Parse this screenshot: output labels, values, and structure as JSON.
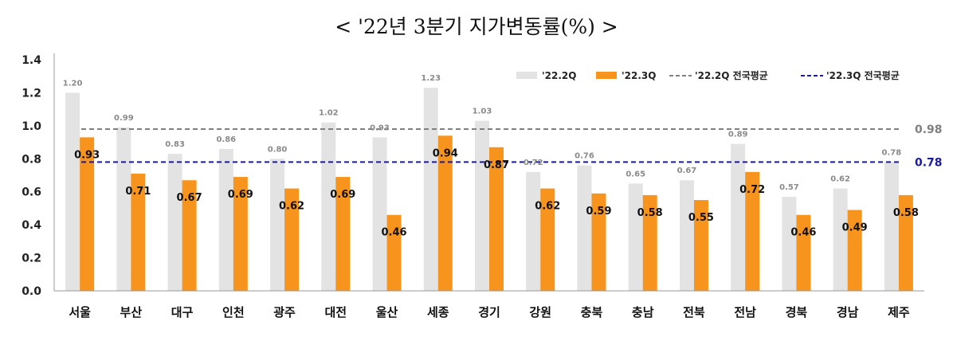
{
  "chart_data": {
    "type": "bar",
    "title": "<  '22년 3분기 지가변동률(%) >",
    "categories": [
      "서울",
      "부산",
      "대구",
      "인천",
      "광주",
      "대전",
      "울산",
      "세종",
      "경기",
      "강원",
      "충북",
      "충남",
      "전북",
      "전남",
      "경북",
      "경남",
      "제주"
    ],
    "series": [
      {
        "name": "'22.2Q",
        "color": "#e3e3e3",
        "values": [
          1.2,
          0.99,
          0.83,
          0.86,
          0.8,
          1.02,
          0.93,
          1.23,
          1.03,
          0.72,
          0.76,
          0.65,
          0.67,
          0.89,
          0.57,
          0.62,
          0.78
        ],
        "labels": [
          "1.20",
          "0.99",
          "0.83",
          "0.86",
          "0.80",
          "1.02",
          "0.93",
          "1.23",
          "1.03",
          "0.72",
          "0.76",
          "0.65",
          "0.67",
          "0.89",
          "0.57",
          "0.62",
          "0.78"
        ]
      },
      {
        "name": "'22.3Q",
        "color": "#f7941d",
        "values": [
          0.93,
          0.71,
          0.67,
          0.69,
          0.62,
          0.69,
          0.46,
          0.94,
          0.87,
          0.62,
          0.59,
          0.58,
          0.55,
          0.72,
          0.46,
          0.49,
          0.58
        ],
        "labels": [
          "0.93",
          "0.71",
          "0.67",
          "0.69",
          "0.62",
          "0.69",
          "0.46",
          "0.94",
          "0.87",
          "0.62",
          "0.59",
          "0.58",
          "0.55",
          "0.72",
          "0.46",
          "0.49",
          "0.58"
        ]
      }
    ],
    "reference_lines": [
      {
        "name": "'22.2Q 전국평균",
        "value": 0.98,
        "label": "0.98",
        "color": "#808080",
        "style": "dashed"
      },
      {
        "name": "'22.3Q 전국평균",
        "value": 0.78,
        "label": "0.78",
        "color": "#1a1aa6",
        "style": "dashed"
      }
    ],
    "ylim": [
      0.0,
      1.4
    ],
    "yticks": [
      "0.0",
      "0.2",
      "0.4",
      "0.6",
      "0.8",
      "1.0",
      "1.2",
      "1.4"
    ],
    "legend_position": "top-right",
    "grid": false
  }
}
